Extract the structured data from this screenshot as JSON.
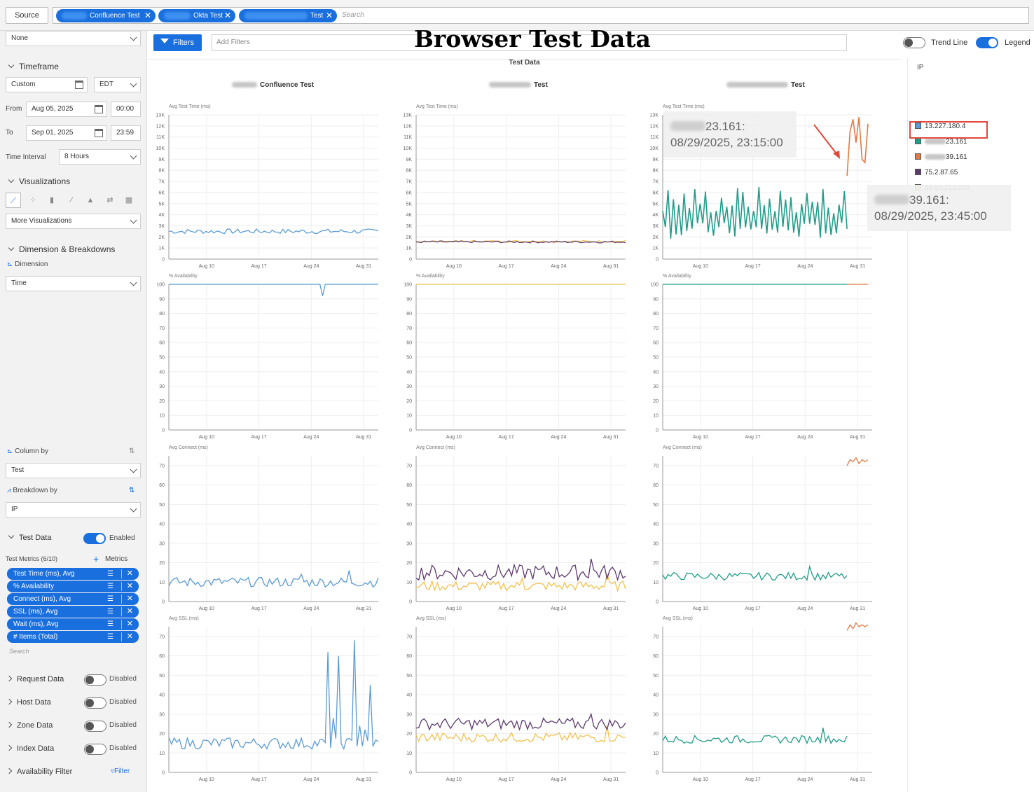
{
  "topbar": {
    "source_label": "Source",
    "chips": [
      {
        "label": "Confluence Test"
      },
      {
        "label": "Okta Test"
      },
      {
        "label": "Test"
      }
    ],
    "search_placeholder": "Search"
  },
  "sidebar": {
    "none_select": "None",
    "timeframe": {
      "title": "Timeframe",
      "range": "Custom",
      "timezone": "EDT",
      "from_label": "From",
      "from_date": "Aug 05, 2025",
      "from_time": "00:00",
      "to_label": "To",
      "to_date": "Sep 01, 2025",
      "to_time": "23:59",
      "interval_label": "Time Interval",
      "interval": "8 Hours"
    },
    "visualizations": {
      "title": "Visualizations",
      "more": "More Visualizations"
    },
    "dimension": {
      "title": "Dimension & Breakdowns",
      "dimension_label": "Dimension",
      "dimension_value": "Time",
      "column_label": "Column by",
      "column_value": "Test",
      "breakdown_label": "Breakdown by",
      "breakdown_value": "IP"
    },
    "test_data": {
      "title": "Test Data",
      "status": "Enabled",
      "metrics_label": "Test Metrics (6/10)",
      "metrics_add": "Metrics",
      "metrics": [
        "Test Time (ms), Avg",
        "% Availability",
        "Connect (ms), Avg",
        "SSL (ms), Avg",
        "Wait (ms), Avg",
        "# Items (Total)"
      ],
      "search_placeholder": "Search"
    },
    "sections": [
      {
        "title": "Request Data",
        "status": "Disabled"
      },
      {
        "title": "Host Data",
        "status": "Disabled"
      },
      {
        "title": "Zone Data",
        "status": "Disabled"
      },
      {
        "title": "Index Data",
        "status": "Disabled"
      }
    ],
    "availability_filter": {
      "title": "Availability Filter",
      "action": "Filter"
    }
  },
  "main": {
    "filters_label": "Filters",
    "add_filters_placeholder": "Add Filters",
    "page_title": "Browser Test Data",
    "trend_line_label": "Trend Line",
    "legend_label": "Legend",
    "chart_title": "Test Data",
    "columns": [
      "Confluence Test",
      "Test",
      "Test"
    ]
  },
  "legend": {
    "title": "IP",
    "items": [
      {
        "label": "13.227.180.4",
        "color": "#5b9bd5",
        "blurred": false
      },
      {
        "label": "23.161",
        "color": "#1f9e89",
        "blurred": true
      },
      {
        "label": "39.161",
        "color": "#e07b45",
        "blurred": true
      },
      {
        "label": "75.2.87.65",
        "color": "#5d3a6e",
        "blurred": false
      },
      {
        "label": "99.83.213.230",
        "color": "#f2c14e",
        "blurred": false
      }
    ]
  },
  "tooltips": [
    {
      "ip": "23.161:",
      "time": "08/29/2025, 23:15:00"
    },
    {
      "ip": "39.161:",
      "time": "08/29/2025, 23:45:00"
    }
  ],
  "chart_data": [
    {
      "type": "line",
      "metric": "Avg Test Time (ms)",
      "yticks": [
        "0",
        "1K",
        "2K",
        "3K",
        "4K",
        "5K",
        "6K",
        "7K",
        "8K",
        "9K",
        "10K",
        "11K",
        "12K",
        "13K"
      ],
      "ylim": [
        0,
        13000
      ],
      "xticks": [
        "Aug 10",
        "Aug 17",
        "Aug 24",
        "Aug 31"
      ]
    },
    {
      "type": "line",
      "metric": "% Availability",
      "yticks": [
        "0",
        "10",
        "20",
        "30",
        "40",
        "50",
        "60",
        "70",
        "80",
        "90",
        "100"
      ],
      "ylim": [
        0,
        100
      ],
      "xticks": [
        "Aug 10",
        "Aug 17",
        "Aug 24",
        "Aug 31"
      ]
    },
    {
      "type": "line",
      "metric": "Avg Connect (ms)",
      "yticks": [
        "0",
        "10",
        "20",
        "30",
        "40",
        "50",
        "60",
        "70"
      ],
      "ylim": [
        0,
        75
      ],
      "xticks": [
        "Aug 10",
        "Aug 17",
        "Aug 24",
        "Aug 31"
      ]
    },
    {
      "type": "line",
      "metric": "Avg SSL (ms)",
      "yticks": [
        "0",
        "10",
        "20",
        "30",
        "40",
        "50",
        "60",
        "70"
      ],
      "ylim": [
        0,
        75
      ],
      "xticks": [
        "Aug 10",
        "Aug 17",
        "Aug 24",
        "Aug 31"
      ]
    }
  ]
}
